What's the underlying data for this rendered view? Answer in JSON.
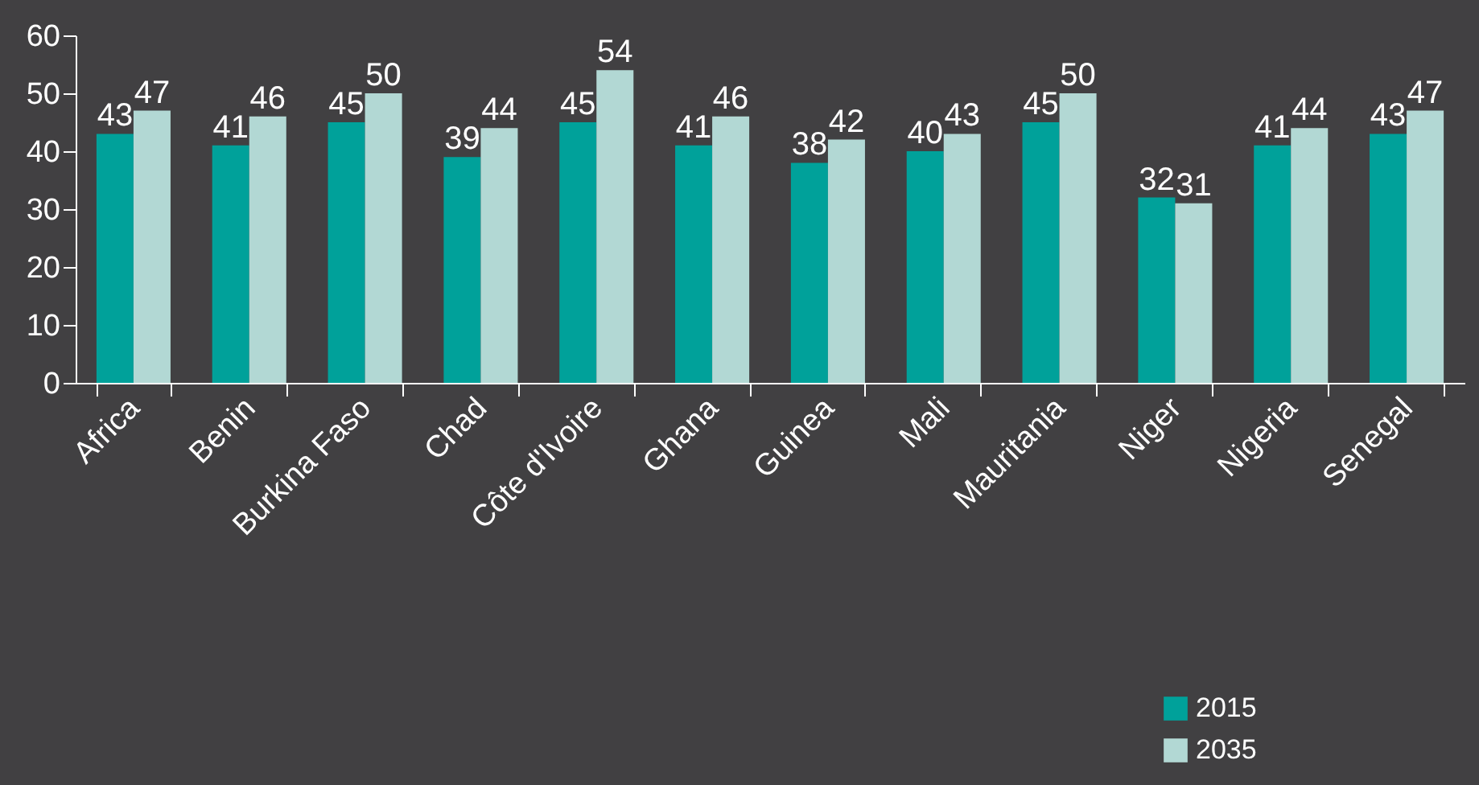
{
  "chart_data": {
    "type": "bar",
    "categories": [
      "Africa",
      "Benin",
      "Burkina Faso",
      "Chad",
      "Côte d'Ivoire",
      "Ghana",
      "Guinea",
      "Mali",
      "Mauritania",
      "Niger",
      "Nigeria",
      "Senegal"
    ],
    "series": [
      {
        "name": "2015",
        "color": "#00a19a",
        "values": [
          43,
          41,
          45,
          39,
          45,
          41,
          38,
          40,
          45,
          32,
          41,
          43
        ]
      },
      {
        "name": "2035",
        "color": "#b2d8d4",
        "values": [
          47,
          46,
          50,
          44,
          54,
          46,
          42,
          43,
          50,
          31,
          44,
          47
        ]
      }
    ],
    "ylim": [
      0,
      60
    ],
    "yticks": [
      0,
      10,
      20,
      30,
      40,
      50,
      60
    ],
    "data_labels": true,
    "legend": "bottom right",
    "grid": false
  }
}
